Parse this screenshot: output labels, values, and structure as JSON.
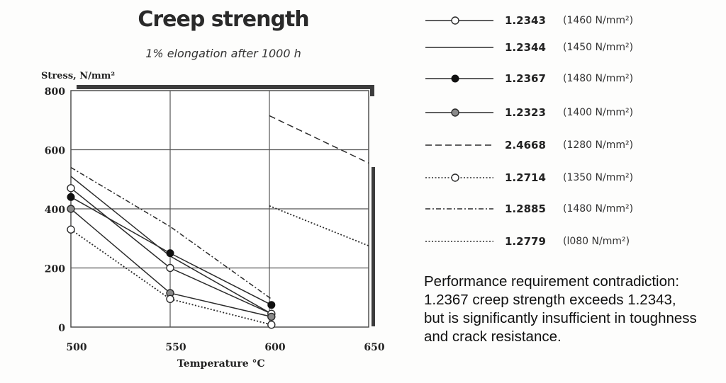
{
  "chart_data": {
    "type": "line",
    "title": "Creep strength",
    "subtitle": "1% elongation after 1000 h",
    "xlabel": "Temperature °C",
    "ylabel": "Stress, N/mm²",
    "xlim": [
      500,
      650
    ],
    "ylim": [
      0,
      800
    ],
    "x_ticks": [
      "500",
      "550",
      "600",
      "650"
    ],
    "y_ticks": [
      "0",
      "200",
      "400",
      "600",
      "800"
    ],
    "grid": true,
    "legend_position": "right",
    "series": [
      {
        "name": "1.2343",
        "strength": "(1460 N/mm²)",
        "style": "solid",
        "marker": "open-circle",
        "x": [
          500,
          550,
          601
        ],
        "values": [
          470,
          200,
          45
        ]
      },
      {
        "name": "1.2344",
        "strength": "(1450 N/mm²)",
        "style": "solid",
        "marker": "none",
        "x": [
          500,
          550,
          601
        ],
        "values": [
          510,
          240,
          45
        ]
      },
      {
        "name": "1.2367",
        "strength": "(1480 N/mm²)",
        "style": "solid",
        "marker": "filled-circle",
        "x": [
          500,
          550,
          601
        ],
        "values": [
          440,
          250,
          75
        ]
      },
      {
        "name": "1.2323",
        "strength": "(1400 N/mm²)",
        "style": "solid",
        "marker": "gray-circle",
        "x": [
          500,
          550,
          601
        ],
        "values": [
          400,
          115,
          35
        ]
      },
      {
        "name": "2.4668",
        "strength": "(1280 N/mm²)",
        "style": "dashed",
        "marker": "none",
        "x": [
          600,
          650
        ],
        "values": [
          715,
          555
        ]
      },
      {
        "name": "1.2714",
        "strength": "(1350 N/mm²)",
        "style": "dotted",
        "marker": "open-circle",
        "x": [
          500,
          550,
          601
        ],
        "values": [
          330,
          95,
          8
        ]
      },
      {
        "name": "1.2885",
        "strength": "(1480 N/mm²)",
        "style": "dash-dot",
        "marker": "none",
        "x": [
          500,
          550,
          601
        ],
        "values": [
          540,
          340,
          95
        ]
      },
      {
        "name": "1.2779",
        "strength": "(l080 N/mm²)",
        "style": "dotted",
        "marker": "none",
        "x": [
          600,
          650
        ],
        "values": [
          410,
          275
        ]
      }
    ]
  },
  "note": {
    "lines": [
      "Performance requirement contradiction:",
      "1.2367 creep strength exceeds 1.2343,",
      "but is significantly insufficient in toughness",
      "and crack resistance."
    ]
  },
  "colors": {
    "line": "#2b2b2b",
    "gray_marker": "#8a8a8a",
    "frame_shadow": "#3c3c3c"
  }
}
